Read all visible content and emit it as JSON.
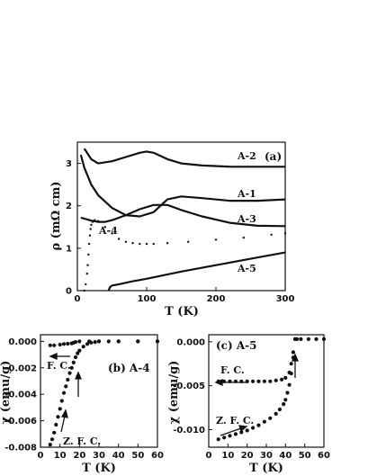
{
  "chart_data": [
    {
      "type": "line",
      "panel_label": "(a)",
      "xlabel": "T (K)",
      "ylabel": "ρ (mΩ cm)",
      "xlim": [
        0,
        300
      ],
      "ylim": [
        0,
        3.5
      ],
      "xticks": [
        0,
        100,
        200,
        300
      ],
      "yticks": [
        0,
        1,
        2,
        3
      ],
      "grid": false,
      "series": [
        {
          "name": "A-2",
          "style": "line",
          "x": [
            10,
            20,
            30,
            50,
            70,
            90,
            100,
            110,
            130,
            150,
            180,
            220,
            260,
            300
          ],
          "y": [
            3.35,
            3.1,
            3.0,
            3.05,
            3.15,
            3.25,
            3.28,
            3.25,
            3.1,
            3.0,
            2.95,
            2.92,
            2.92,
            2.92
          ]
        },
        {
          "name": "A-1",
          "style": "line",
          "x": [
            5,
            10,
            20,
            30,
            50,
            70,
            90,
            110,
            130,
            150,
            180,
            220,
            260,
            300
          ],
          "y": [
            3.2,
            2.9,
            2.5,
            2.25,
            1.95,
            1.78,
            1.75,
            1.85,
            2.15,
            2.22,
            2.18,
            2.12,
            2.12,
            2.15
          ]
        },
        {
          "name": "A-3",
          "style": "line",
          "x": [
            5,
            10,
            20,
            30,
            40,
            50,
            70,
            90,
            110,
            130,
            150,
            180,
            220,
            260,
            300
          ],
          "y": [
            1.72,
            1.7,
            1.65,
            1.62,
            1.62,
            1.66,
            1.78,
            1.92,
            2.02,
            2.02,
            1.9,
            1.75,
            1.6,
            1.53,
            1.52
          ]
        },
        {
          "name": "A-4",
          "style": "points",
          "x": [
            10,
            12,
            14,
            15,
            16,
            17,
            18,
            19,
            20,
            22,
            25,
            30,
            40,
            50,
            60,
            70,
            80,
            90,
            100,
            110,
            130,
            160,
            200,
            240,
            280,
            300
          ],
          "y": [
            0.0,
            0.15,
            0.4,
            0.6,
            0.85,
            1.1,
            1.3,
            1.45,
            1.55,
            1.62,
            1.66,
            1.64,
            1.5,
            1.35,
            1.22,
            1.15,
            1.12,
            1.1,
            1.1,
            1.1,
            1.12,
            1.15,
            1.2,
            1.25,
            1.32,
            1.35
          ]
        },
        {
          "name": "A-5",
          "style": "line",
          "x": [
            45,
            47,
            50,
            60,
            80,
            100,
            150,
            200,
            250,
            300
          ],
          "y": [
            0.0,
            0.08,
            0.12,
            0.15,
            0.22,
            0.28,
            0.45,
            0.6,
            0.75,
            0.9
          ]
        }
      ]
    },
    {
      "type": "scatter",
      "panel_label": "(b) A-4",
      "xlabel": "T (K)",
      "ylabel": "χ (emu/g)",
      "xlim": [
        0,
        60
      ],
      "ylim": [
        -0.008,
        0.0005
      ],
      "xticks": [
        0,
        10,
        20,
        30,
        40,
        50,
        60
      ],
      "yticks": [
        "-0.008",
        "-0.006",
        "-0.004",
        "-0.002",
        "0.000"
      ],
      "annotations": [
        "F. C.",
        "Z. F. C."
      ],
      "series": [
        {
          "name": "F. C.",
          "x": [
            5,
            7,
            10,
            12,
            14,
            16,
            17,
            18,
            20,
            25,
            30,
            40,
            50,
            60
          ],
          "y": [
            -0.0003,
            -0.0003,
            -0.00025,
            -0.0002,
            -0.00018,
            -0.00015,
            -0.0001,
            -5e-05,
            0.0,
            0.0,
            0.0,
            0.0,
            0.0,
            0.0
          ]
        },
        {
          "name": "Z. F. C.",
          "x": [
            5,
            6,
            7,
            8,
            9,
            10,
            11,
            12,
            13,
            14,
            15,
            16,
            17,
            18,
            19,
            20,
            22,
            24,
            26,
            28,
            30,
            35,
            40,
            50,
            60
          ],
          "y": [
            -0.0078,
            -0.0074,
            -0.0069,
            -0.0063,
            -0.0057,
            -0.0051,
            -0.0045,
            -0.0039,
            -0.0034,
            -0.0029,
            -0.0024,
            -0.002,
            -0.0016,
            -0.0012,
            -0.0009,
            -0.0007,
            -0.0004,
            -0.0002,
            -0.0001,
            -5e-05,
            0.0,
            0.0,
            0.0,
            0.0,
            0.0
          ]
        }
      ]
    },
    {
      "type": "scatter",
      "panel_label": "(c) A-5",
      "xlabel": "T (K)",
      "ylabel": "χ (emu/g)",
      "xlim": [
        0,
        60
      ],
      "ylim": [
        -0.012,
        0.0008
      ],
      "xticks": [
        0,
        10,
        20,
        30,
        40,
        50,
        60
      ],
      "yticks": [
        "-0.010",
        "-0.005",
        "0.000"
      ],
      "annotations": [
        "F. C.",
        "Z. F. C."
      ],
      "series": [
        {
          "name": "F. C.",
          "x": [
            5,
            8,
            11,
            14,
            17,
            20,
            23,
            26,
            29,
            32,
            35,
            38,
            40,
            42,
            43,
            44,
            45,
            46,
            48,
            52,
            56,
            60
          ],
          "y": [
            -0.0045,
            -0.0045,
            -0.0045,
            -0.0045,
            -0.0045,
            -0.0045,
            -0.0045,
            -0.0045,
            -0.0045,
            -0.0045,
            -0.0044,
            -0.0043,
            -0.0041,
            -0.0035,
            -0.0025,
            -0.0012,
            0.0003,
            0.0003,
            0.0003,
            0.0003,
            0.0003,
            0.0003
          ]
        },
        {
          "name": "Z. F. C.",
          "x": [
            5,
            8,
            11,
            14,
            17,
            20,
            23,
            26,
            29,
            32,
            35,
            37,
            39,
            40,
            41,
            42,
            43,
            44,
            45
          ],
          "y": [
            -0.0111,
            -0.0109,
            -0.0107,
            -0.0105,
            -0.0103,
            -0.0101,
            -0.0098,
            -0.0095,
            -0.0091,
            -0.0087,
            -0.0082,
            -0.0077,
            -0.0071,
            -0.0066,
            -0.0058,
            -0.0049,
            -0.0036,
            -0.0018,
            0.0003
          ]
        }
      ]
    }
  ]
}
